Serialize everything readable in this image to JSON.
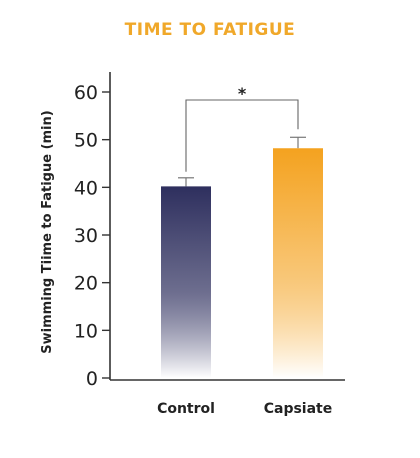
{
  "chart_data": {
    "type": "bar",
    "title": "TIME TO FATIGUE",
    "xlabel": "",
    "ylabel": "Swimming Tiime to Fatigue (min)",
    "categories": [
      "Control",
      "Capsiate"
    ],
    "values": [
      40.2,
      48.2
    ],
    "error_upper": [
      42.0,
      50.5
    ],
    "ylim": [
      0,
      60
    ],
    "yticks": [
      0,
      10,
      20,
      30,
      40,
      50,
      60
    ],
    "ytick_labels": [
      "0",
      "10",
      "20",
      "30",
      "40",
      "50",
      "60"
    ],
    "grid": false,
    "legend": "none",
    "significance": {
      "label": "*",
      "between": [
        "Control",
        "Capsiate"
      ]
    },
    "colors": {
      "title": "#f0a82a",
      "control_top": "#2e2f5e",
      "control_bottom": "#ffffff",
      "capsiate_top": "#f4a21f",
      "capsiate_bottom": "#ffffff",
      "axis": "#333333",
      "bracket": "#666666"
    }
  }
}
